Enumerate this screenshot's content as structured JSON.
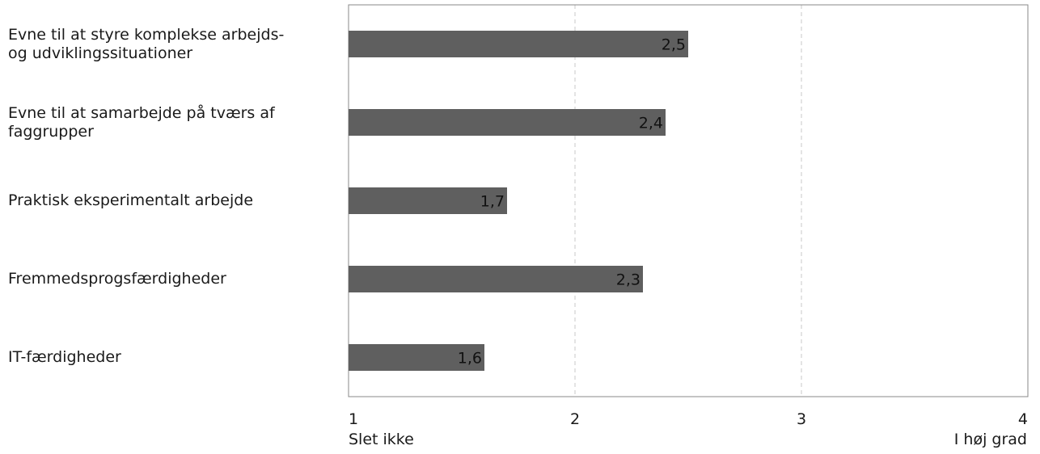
{
  "chart_data": {
    "type": "bar",
    "orientation": "horizontal",
    "categories": [
      "Evne til at styre komplekse arbejds-\nog udviklingssituationer",
      "Evne til at samarbejde på tværs af\nfaggrupper",
      "Praktisk eksperimentalt arbejde",
      "Fremmedsprogsfærdigheder",
      "IT-færdigheder"
    ],
    "values": [
      2.5,
      2.4,
      1.7,
      2.3,
      1.6
    ],
    "data_labels": [
      "2,5",
      "2,4",
      "1,7",
      "2,3",
      "1,6"
    ],
    "xlim": [
      1,
      4
    ],
    "x_ticks": [
      1,
      2,
      3,
      4
    ],
    "x_tick_labels": [
      "1",
      "2",
      "3",
      "4"
    ],
    "x_end_labels": {
      "low": "Slet ikke",
      "high": "I høj grad"
    },
    "grid": "vertical dashed",
    "title": "",
    "xlabel": "",
    "ylabel": "",
    "bar_color": "#5f5f5f",
    "grid_color": "#c8c8c8",
    "axis_color": "#888888"
  }
}
